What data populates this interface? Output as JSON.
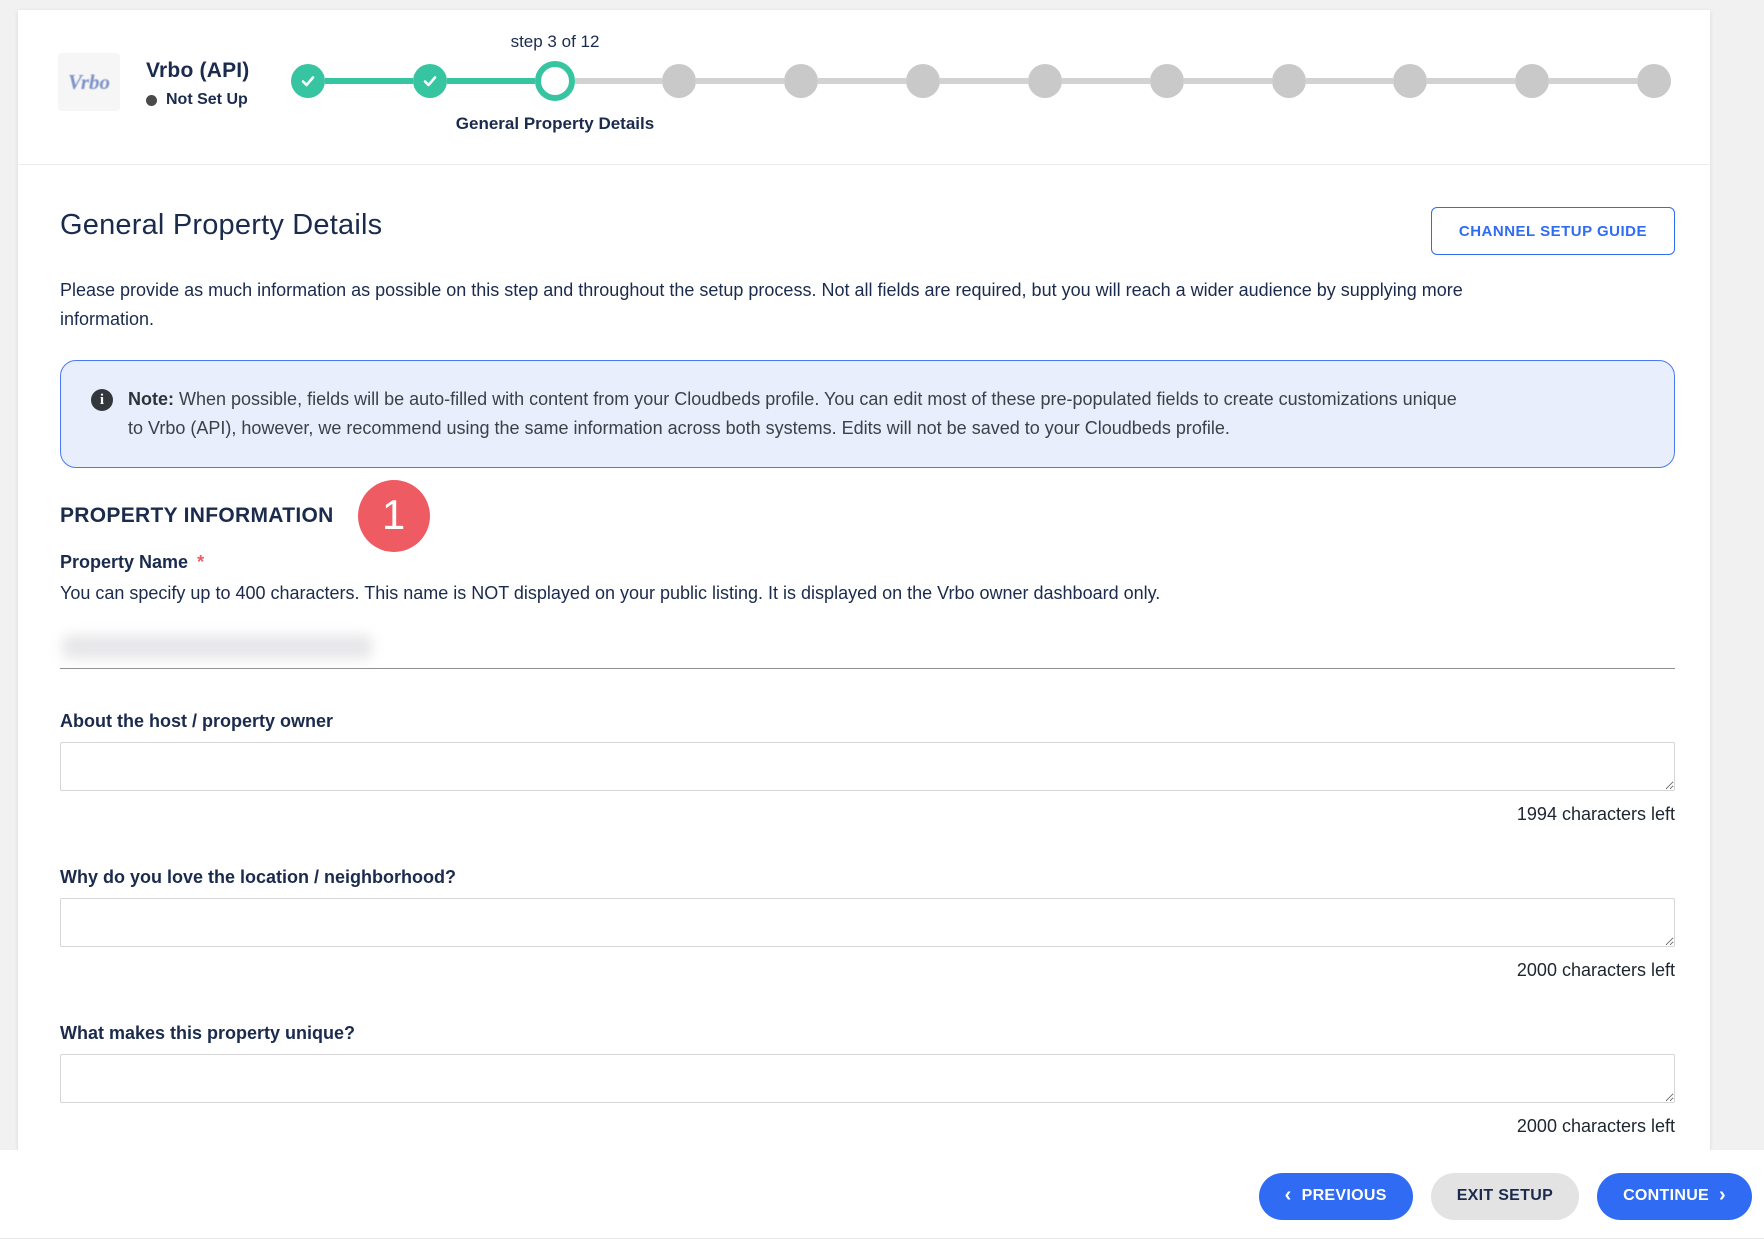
{
  "channel": {
    "logo_text": "Vrbo",
    "name": "Vrbo (API)",
    "status": "Not Set Up"
  },
  "stepper": {
    "step_label": "step 3 of 12",
    "current_step_name": "General Property Details",
    "total_steps": 12,
    "completed_steps": 2,
    "active_step": 3
  },
  "header": {
    "title": "General Property Details",
    "guide_button": "CHANNEL SETUP GUIDE",
    "intro": "Please provide as much information as possible on this step and throughout the setup process. Not all fields are required, but you will reach a wider audience by supplying more information."
  },
  "note": {
    "label": "Note:",
    "text": " When possible, fields will be auto-filled with content from your Cloudbeds profile. You can edit most of these pre-populated fields to create customizations unique to Vrbo (API), however, we recommend using the same information across both systems. Edits will not be saved to your Cloudbeds profile."
  },
  "section": {
    "title": "PROPERTY INFORMATION",
    "badge": "1"
  },
  "fields": {
    "property_name": {
      "label": "Property Name",
      "required_marker": "*",
      "helper": "You can specify up to 400 characters. This name is NOT displayed on your public listing. It is displayed on the Vrbo owner dashboard only.",
      "value": "",
      "value_redacted": true
    },
    "about_host": {
      "label": "About the host / property owner",
      "value": "",
      "counter": "1994 characters left"
    },
    "love_location": {
      "label": "Why do you love the location / neighborhood?",
      "value": "",
      "counter": "2000 characters left"
    },
    "unique": {
      "label": "What makes this property unique?",
      "value": "",
      "counter": "2000 characters left"
    }
  },
  "footer": {
    "previous_icon": "‹",
    "previous": "PREVIOUS",
    "exit": "EXIT SETUP",
    "continue": "CONTINUE",
    "continue_icon": "›"
  },
  "colors": {
    "accent_green": "#36c5a0",
    "inactive_gray": "#c9c9c9",
    "primary_blue": "#2f6bf3",
    "navy": "#1b2b4d",
    "badge_red": "#ee5b62",
    "note_bg": "#e9eefc",
    "note_border": "#4b79f6"
  }
}
